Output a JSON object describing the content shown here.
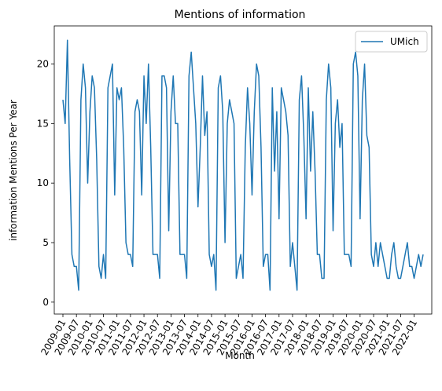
{
  "chart_data": {
    "type": "line",
    "title": "Mentions of information",
    "xlabel": "Month",
    "ylabel": "information Mentions Per Year",
    "ylim": [
      -1,
      23.2
    ],
    "yticks": [
      0,
      5,
      10,
      15,
      20
    ],
    "grid": false,
    "legend_position": "top-right",
    "x_tick_labels": [
      "2009-01",
      "2009-07",
      "2010-01",
      "2010-07",
      "2011-01",
      "2011-07",
      "2012-01",
      "2012-07",
      "2013-01",
      "2013-07",
      "2014-01",
      "2014-07",
      "2015-01",
      "2015-07",
      "2016-01",
      "2016-07",
      "2017-01",
      "2017-07",
      "2018-01",
      "2018-07",
      "2019-01",
      "2019-07",
      "2020-01",
      "2020-07",
      "2021-01",
      "2021-07",
      "2022-01"
    ],
    "series": [
      {
        "name": "UMich",
        "color": "#1f77b4",
        "start": "2009-01",
        "values": [
          17,
          15,
          22,
          12,
          4,
          3,
          3,
          1,
          17,
          20,
          18,
          10,
          16,
          19,
          18,
          12,
          3,
          2,
          4,
          2,
          18,
          19,
          20,
          9,
          18,
          17,
          18,
          13,
          5,
          4,
          4,
          3,
          16,
          17,
          16,
          9,
          19,
          15,
          20,
          13,
          4,
          4,
          4,
          2,
          19,
          19,
          18,
          6,
          16,
          19,
          15,
          15,
          4,
          4,
          4,
          2,
          19,
          21,
          18,
          15,
          8,
          13,
          19,
          14,
          16,
          4,
          3,
          4,
          1,
          18,
          19,
          16,
          5,
          15,
          17,
          16,
          15,
          2,
          3,
          4,
          2,
          13,
          18,
          15,
          9,
          16,
          20,
          19,
          13,
          3,
          4,
          4,
          1,
          18,
          11,
          16,
          7,
          18,
          17,
          16,
          14,
          3,
          5,
          3,
          1,
          17,
          19,
          14,
          7,
          18,
          11,
          16,
          11,
          4,
          4,
          2,
          2,
          17,
          20,
          18,
          6,
          15,
          17,
          13,
          15,
          4,
          4,
          4,
          3,
          20,
          21,
          19,
          7,
          17,
          20,
          14,
          13,
          4,
          3,
          5,
          3,
          5,
          4,
          3,
          2,
          2,
          4,
          5,
          3,
          2,
          2,
          3,
          4,
          5,
          3,
          3,
          2,
          3,
          4,
          3,
          4
        ]
      }
    ]
  }
}
